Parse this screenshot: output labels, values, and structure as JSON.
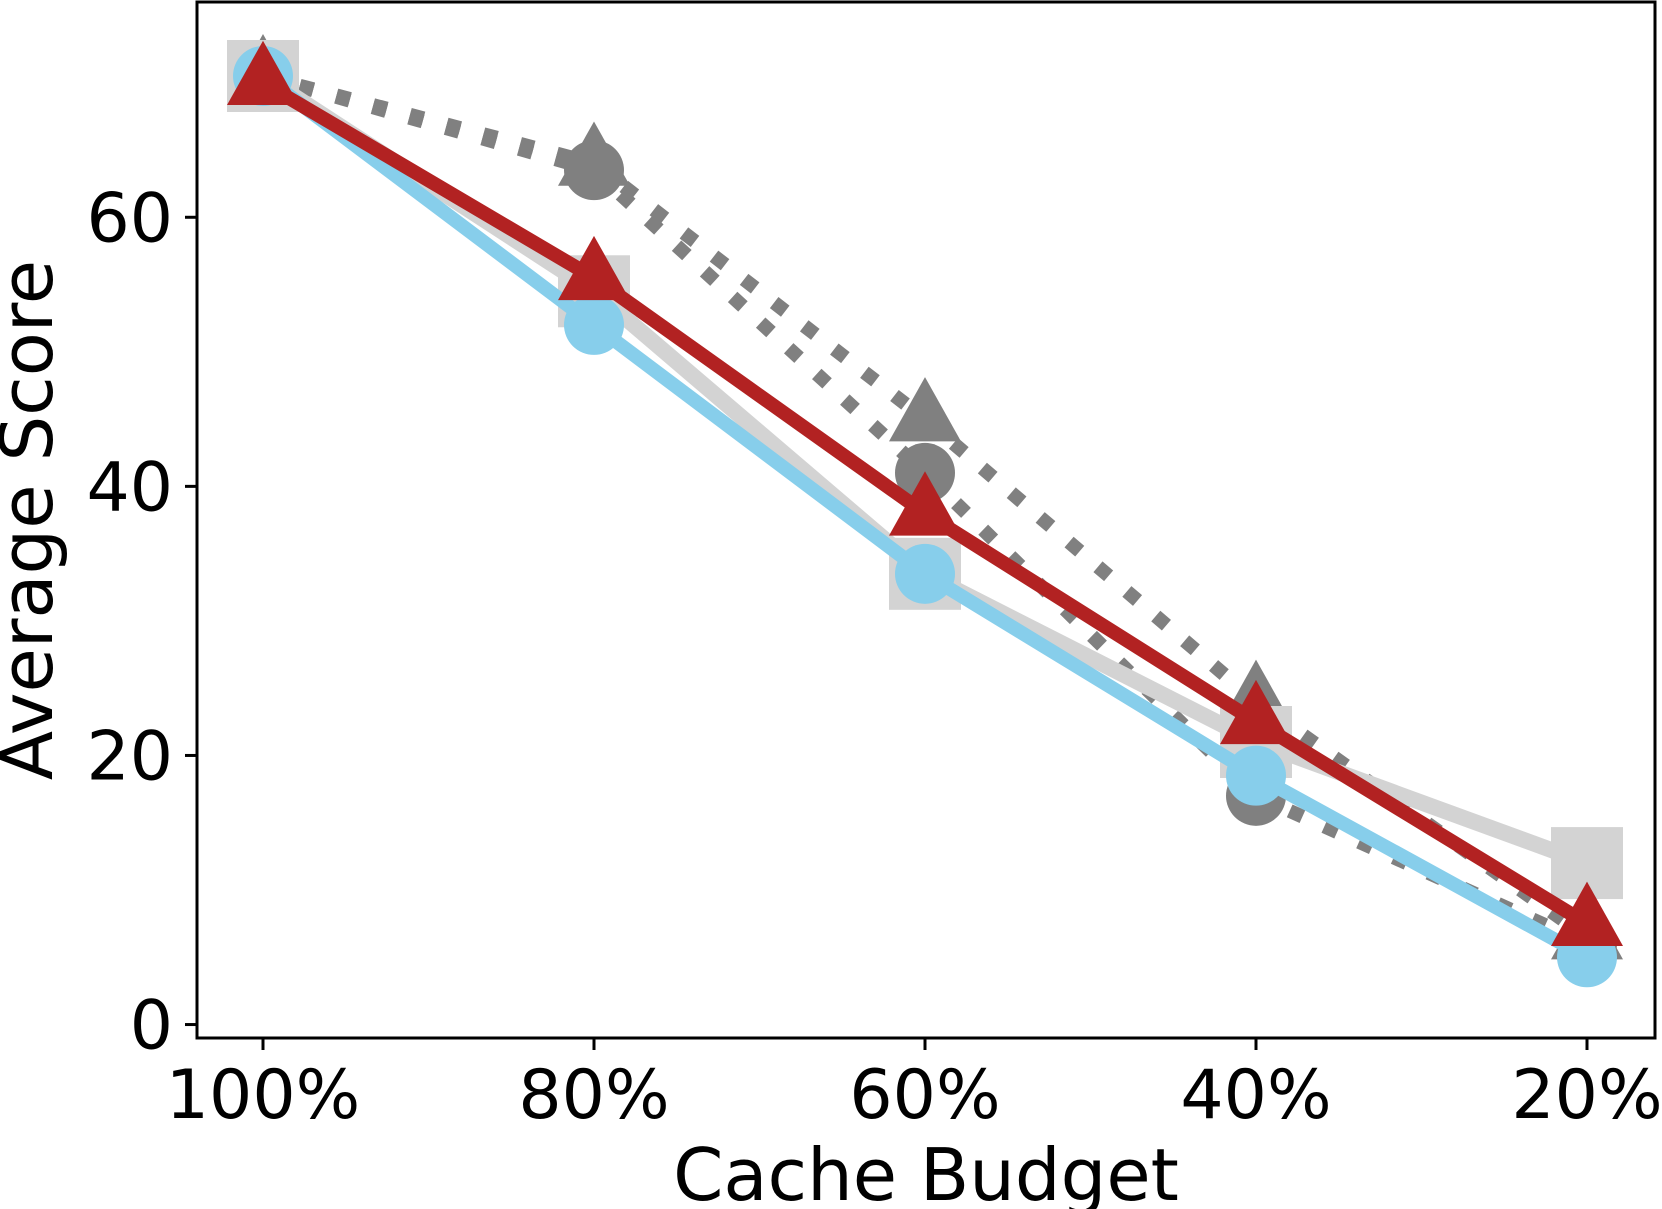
{
  "chart_data": {
    "type": "line",
    "categories": [
      "100%",
      "80%",
      "60%",
      "40%",
      "20%"
    ],
    "xlabel": "Cache Budget",
    "ylabel": "Average Score",
    "ylim": [
      -1,
      76
    ],
    "yticks": [
      0,
      20,
      40,
      60
    ],
    "grid": false,
    "legend": "none",
    "series": [
      {
        "values": [
          70.5,
          64.0,
          45.0,
          24.0,
          6.5
        ],
        "color": "#808080",
        "style": "dotted",
        "marker": "triangle"
      },
      {
        "values": [
          70.5,
          63.5,
          41.0,
          17.0,
          6.0
        ],
        "color": "#808080",
        "style": "dotted",
        "marker": "circle"
      },
      {
        "values": [
          70.5,
          54.5,
          33.5,
          21.0,
          12.0
        ],
        "color": "#d3d3d3",
        "style": "solid",
        "marker": "square"
      },
      {
        "values": [
          70.5,
          52.0,
          33.5,
          18.5,
          5.0
        ],
        "color": "#87ceeb",
        "style": "solid",
        "marker": "circle"
      },
      {
        "values": [
          70.0,
          55.5,
          38.0,
          22.5,
          7.5
        ],
        "color": "#b22222",
        "style": "solid",
        "marker": "triangle"
      }
    ]
  }
}
